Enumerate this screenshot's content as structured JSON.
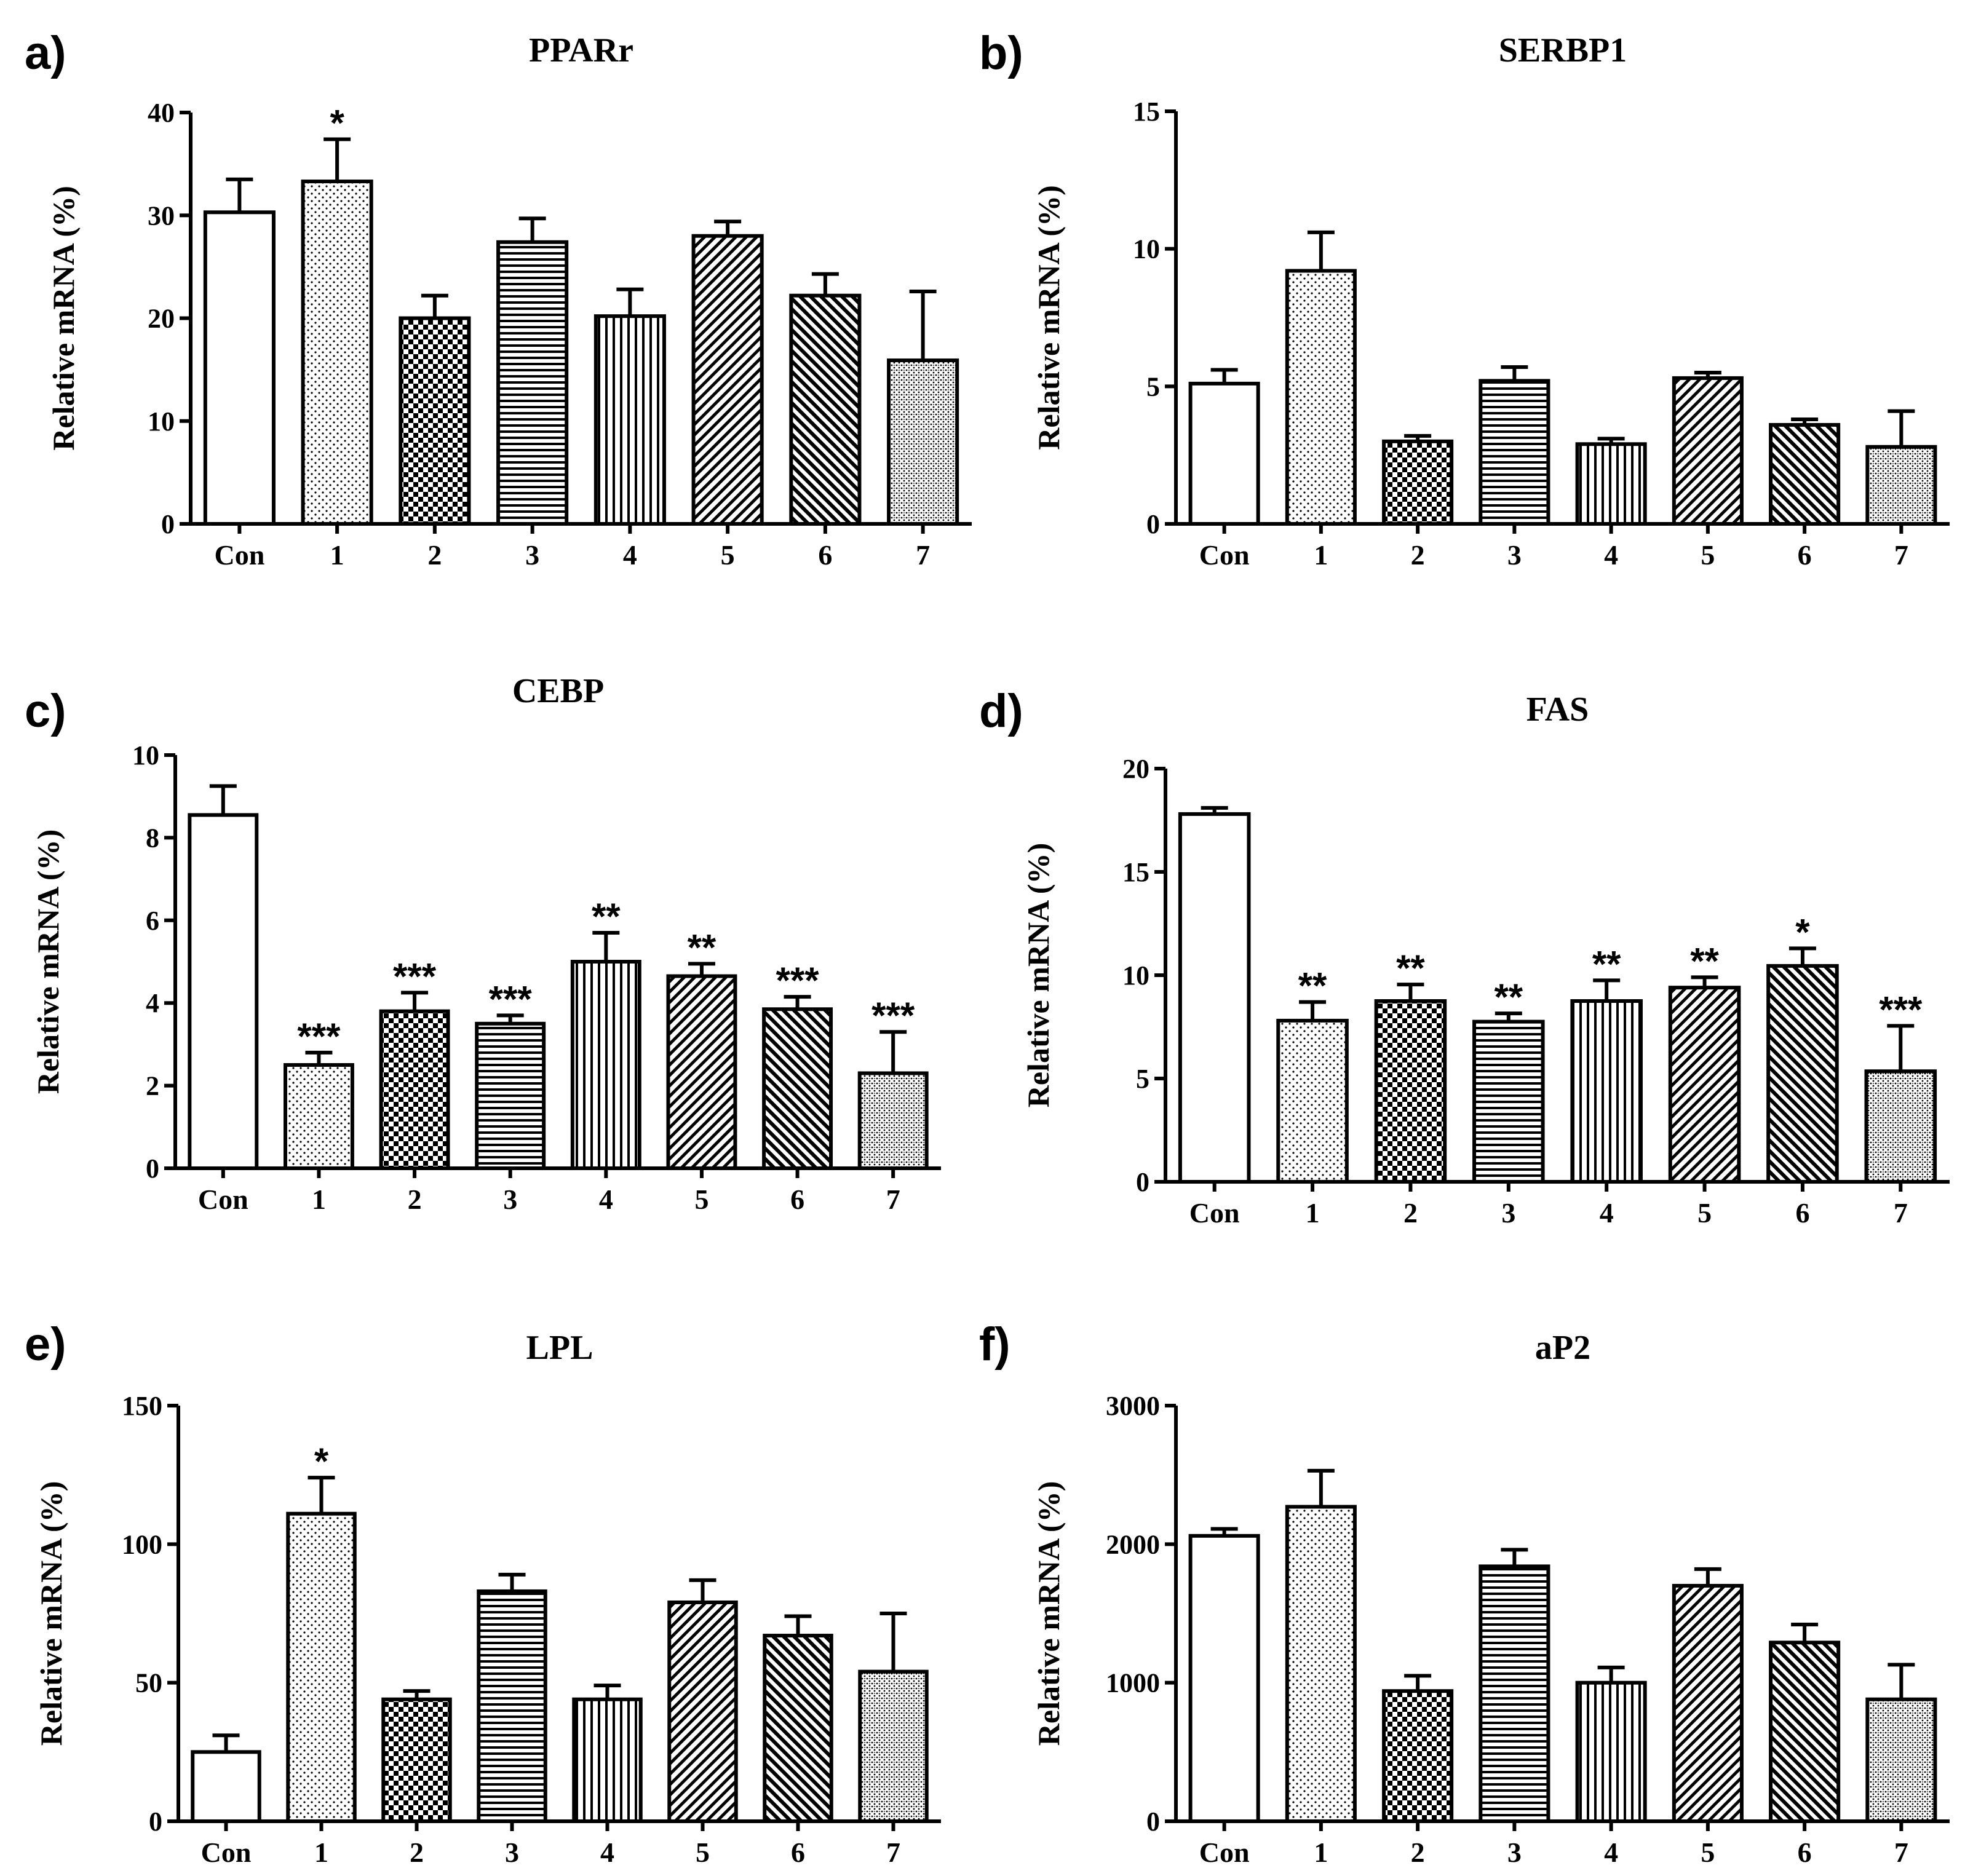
{
  "figure": {
    "ylabel": "Relative mRNA (%)"
  },
  "chart_data": [
    {
      "type": "bar",
      "panel": "a)",
      "title": "PPARr",
      "ylabel": "Relative mRNA (%)",
      "ylim": [
        0,
        40
      ],
      "yticks": [
        0,
        10,
        20,
        30,
        40
      ],
      "categories": [
        "Con",
        "1",
        "2",
        "3",
        "4",
        "5",
        "6",
        "7"
      ],
      "values": [
        30.3,
        33.3,
        20.0,
        27.4,
        20.2,
        28.0,
        22.2,
        15.9
      ],
      "errors": [
        3.2,
        4.1,
        2.2,
        2.3,
        2.6,
        1.4,
        2.1,
        6.7
      ],
      "significance": [
        "",
        "*",
        "",
        "",
        "",
        "",
        "",
        ""
      ]
    },
    {
      "type": "bar",
      "panel": "b)",
      "title": "SERBP1",
      "ylabel": "Relative mRNA (%)",
      "ylim": [
        0,
        15
      ],
      "yticks": [
        0,
        5,
        10,
        15
      ],
      "categories": [
        "Con",
        "1",
        "2",
        "3",
        "4",
        "5",
        "6",
        "7"
      ],
      "values": [
        5.1,
        9.2,
        3.0,
        5.2,
        2.9,
        5.3,
        3.6,
        2.8
      ],
      "errors": [
        0.5,
        1.4,
        0.2,
        0.5,
        0.2,
        0.2,
        0.2,
        1.3
      ],
      "significance": [
        "",
        "",
        "",
        "",
        "",
        "",
        "",
        ""
      ]
    },
    {
      "type": "bar",
      "panel": "c)",
      "title": "CEBP",
      "ylabel": "Relative mRNA (%)",
      "ylim": [
        0,
        10
      ],
      "yticks": [
        0,
        2,
        4,
        6,
        8,
        10
      ],
      "categories": [
        "Con",
        "1",
        "2",
        "3",
        "4",
        "5",
        "6",
        "7"
      ],
      "values": [
        8.55,
        2.5,
        3.8,
        3.5,
        5.0,
        4.65,
        3.85,
        2.3
      ],
      "errors": [
        0.7,
        0.3,
        0.45,
        0.2,
        0.7,
        0.3,
        0.3,
        1.0
      ],
      "significance": [
        "",
        "***",
        "***",
        "***",
        "**",
        "**",
        "***",
        "***"
      ]
    },
    {
      "type": "bar",
      "panel": "d)",
      "title": "FAS",
      "ylabel": "Relative mRNA (%)",
      "ylim": [
        0,
        20
      ],
      "yticks": [
        0,
        5,
        10,
        15,
        20
      ],
      "categories": [
        "Con",
        "1",
        "2",
        "3",
        "4",
        "5",
        "6",
        "7"
      ],
      "values": [
        17.8,
        7.8,
        8.75,
        7.75,
        8.75,
        9.4,
        10.45,
        5.35
      ],
      "errors": [
        0.3,
        0.9,
        0.8,
        0.4,
        1.0,
        0.5,
        0.85,
        2.2
      ],
      "significance": [
        "",
        "**",
        "**",
        "**",
        "**",
        "**",
        "*",
        "***"
      ]
    },
    {
      "type": "bar",
      "panel": "e)",
      "title": "LPL",
      "ylabel": "Relative mRNA (%)",
      "ylim": [
        0,
        150
      ],
      "yticks": [
        0,
        50,
        100,
        150
      ],
      "categories": [
        "Con",
        "1",
        "2",
        "3",
        "4",
        "5",
        "6",
        "7"
      ],
      "values": [
        25,
        111,
        44,
        83,
        44,
        79,
        67,
        54
      ],
      "errors": [
        6,
        13,
        3,
        6,
        5,
        8,
        7,
        21
      ],
      "significance": [
        "",
        "*",
        "",
        "",
        "",
        "",
        "",
        ""
      ]
    },
    {
      "type": "bar",
      "panel": "f)",
      "title": "aP2",
      "ylabel": "Relative mRNA (%)",
      "ylim": [
        0,
        3000
      ],
      "yticks": [
        0,
        1000,
        2000,
        3000
      ],
      "categories": [
        "Con",
        "1",
        "2",
        "3",
        "4",
        "5",
        "6",
        "7"
      ],
      "values": [
        2060,
        2270,
        940,
        1840,
        1000,
        1700,
        1290,
        880
      ],
      "errors": [
        50,
        260,
        110,
        120,
        110,
        120,
        130,
        250
      ],
      "significance": [
        "",
        "",
        "",
        "",
        "",
        "",
        "",
        ""
      ]
    }
  ]
}
